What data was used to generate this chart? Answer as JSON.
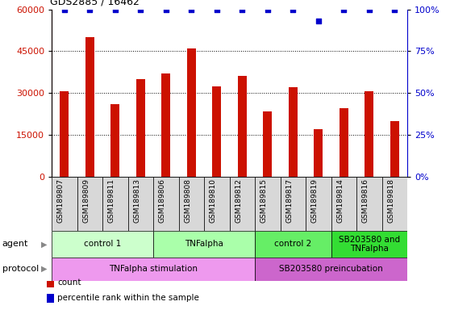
{
  "title": "GDS2885 / 16462",
  "samples": [
    "GSM189807",
    "GSM189809",
    "GSM189811",
    "GSM189813",
    "GSM189806",
    "GSM189808",
    "GSM189810",
    "GSM189812",
    "GSM189815",
    "GSM189817",
    "GSM189819",
    "GSM189814",
    "GSM189816",
    "GSM189818"
  ],
  "counts": [
    30500,
    50000,
    26000,
    35000,
    37000,
    46000,
    32500,
    36000,
    23500,
    32000,
    17000,
    24500,
    30500,
    20000
  ],
  "percentile_ranks": [
    100,
    100,
    100,
    100,
    100,
    100,
    100,
    100,
    100,
    100,
    93,
    100,
    100,
    100
  ],
  "bar_color": "#cc1100",
  "dot_color": "#0000cc",
  "ylim_left": [
    0,
    60000
  ],
  "ylim_right": [
    0,
    100
  ],
  "yticks_left": [
    0,
    15000,
    30000,
    45000,
    60000
  ],
  "yticks_right": [
    0,
    25,
    50,
    75,
    100
  ],
  "agent_groups": [
    {
      "label": "control 1",
      "start": 0,
      "end": 4,
      "color": "#ccffcc"
    },
    {
      "label": "TNFalpha",
      "start": 4,
      "end": 8,
      "color": "#aaffaa"
    },
    {
      "label": "control 2",
      "start": 8,
      "end": 11,
      "color": "#66ee66"
    },
    {
      "label": "SB203580 and\nTNFalpha",
      "start": 11,
      "end": 14,
      "color": "#33dd33"
    }
  ],
  "protocol_groups": [
    {
      "label": "TNFalpha stimulation",
      "start": 0,
      "end": 8,
      "color": "#ee99ee"
    },
    {
      "label": "SB203580 preincubation",
      "start": 8,
      "end": 14,
      "color": "#cc66cc"
    }
  ],
  "legend_items": [
    {
      "color": "#cc1100",
      "label": "count"
    },
    {
      "color": "#0000cc",
      "label": "percentile rank within the sample"
    }
  ]
}
